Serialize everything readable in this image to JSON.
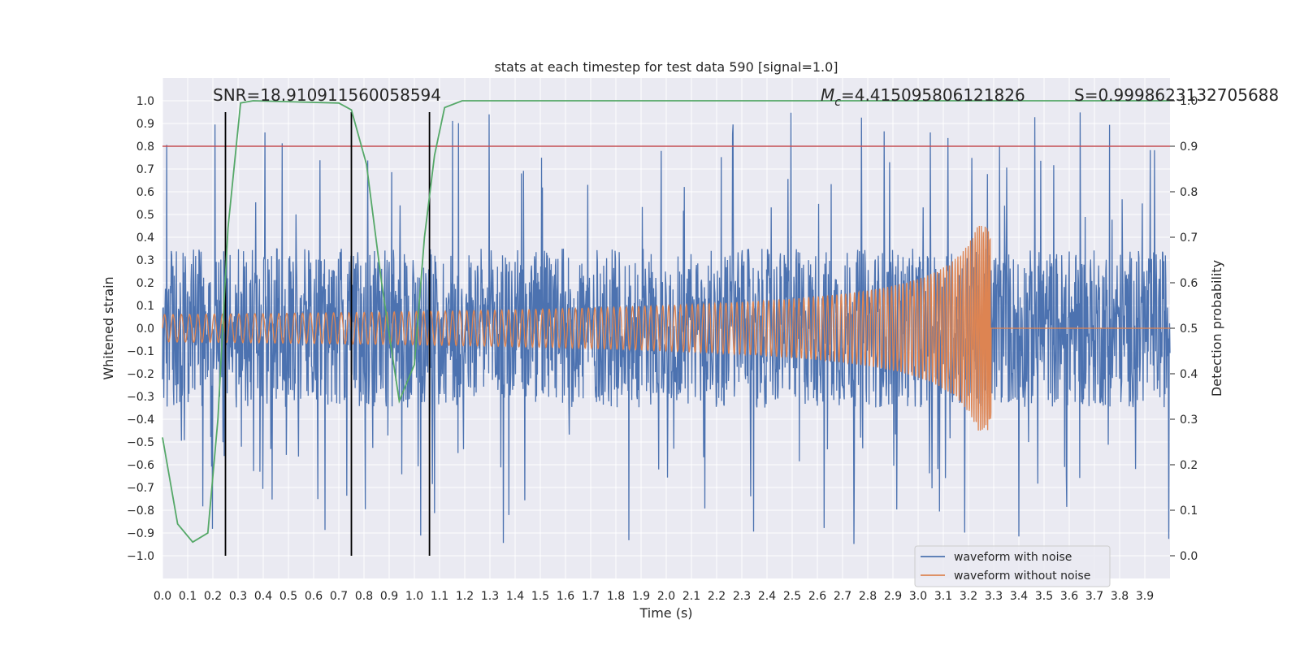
{
  "chart_data": {
    "type": "line",
    "title": "stats at each timestep for test data 590 [signal=1.0]",
    "xlabel": "Time (s)",
    "ylabel": "Whitened strain",
    "ylabel_right": "Detection probability",
    "xlim": [
      0.0,
      4.0
    ],
    "ylim": [
      -1.1,
      1.1
    ],
    "ylim_right": [
      -0.05,
      1.05
    ],
    "xticks": [
      "0.0",
      "0.1",
      "0.2",
      "0.3",
      "0.4",
      "0.5",
      "0.6",
      "0.7",
      "0.8",
      "0.9",
      "1.0",
      "1.1",
      "1.2",
      "1.3",
      "1.4",
      "1.5",
      "1.6",
      "1.7",
      "1.8",
      "1.9",
      "2.0",
      "2.1",
      "2.2",
      "2.3",
      "2.4",
      "2.5",
      "2.6",
      "2.7",
      "2.8",
      "2.9",
      "3.0",
      "3.1",
      "3.2",
      "3.3",
      "3.4",
      "3.5",
      "3.6",
      "3.7",
      "3.8",
      "3.9"
    ],
    "yticks": [
      "1.0",
      "0.9",
      "0.8",
      "0.7",
      "0.6",
      "0.5",
      "0.4",
      "0.3",
      "0.2",
      "0.1",
      "0.0",
      "−0.1",
      "−0.2",
      "−0.3",
      "−0.4",
      "−0.5",
      "−0.6",
      "−0.7",
      "−0.8",
      "−0.9",
      "−1.0"
    ],
    "yticks_right": [
      "1.0",
      "0.9",
      "0.8",
      "0.7",
      "0.6",
      "0.5",
      "0.4",
      "0.3",
      "0.2",
      "0.1",
      "0.0"
    ],
    "annotations": {
      "snr": "SNR=18.910911560058594",
      "mc_symbol": "M",
      "mc_sub": "c",
      "mc_value": "=4.415095806121826",
      "s": "S=0.9998623132705688"
    },
    "series": [
      {
        "name": "waveform with noise",
        "color": "#4c72b0",
        "axis": "left",
        "kind": "noise",
        "amplitude_typical": 0.35,
        "amplitude_max": 1.0
      },
      {
        "name": "waveform without noise",
        "color": "#dd8452",
        "axis": "left",
        "kind": "chirp",
        "start_amplitude": 0.06,
        "peak_amplitude": 0.45,
        "merger_time": 3.29
      },
      {
        "name": "detection probability",
        "color": "#55a868",
        "axis": "right",
        "x": [
          0.0,
          0.06,
          0.12,
          0.18,
          0.22,
          0.26,
          0.31,
          0.36,
          0.7,
          0.75,
          0.81,
          0.87,
          0.91,
          0.94,
          1.0,
          1.04,
          1.08,
          1.12,
          1.19,
          4.0
        ],
        "y": [
          0.26,
          0.07,
          0.03,
          0.05,
          0.3,
          0.72,
          0.995,
          1.0,
          0.995,
          0.98,
          0.86,
          0.6,
          0.45,
          0.34,
          0.42,
          0.7,
          0.88,
          0.985,
          1.0,
          1.0
        ]
      }
    ],
    "hlines_right": [
      {
        "y": 0.9,
        "color": "#c44e52"
      }
    ],
    "vlines": [
      {
        "x": 0.25
      },
      {
        "x": 0.75
      },
      {
        "x": 1.06
      }
    ],
    "vline_range": [
      -1.0,
      0.95
    ],
    "legend": {
      "position": "bottom-right",
      "entries": [
        {
          "label": "waveform with noise",
          "color": "#4c72b0"
        },
        {
          "label": "waveform without noise",
          "color": "#dd8452"
        }
      ]
    },
    "grid": true
  }
}
